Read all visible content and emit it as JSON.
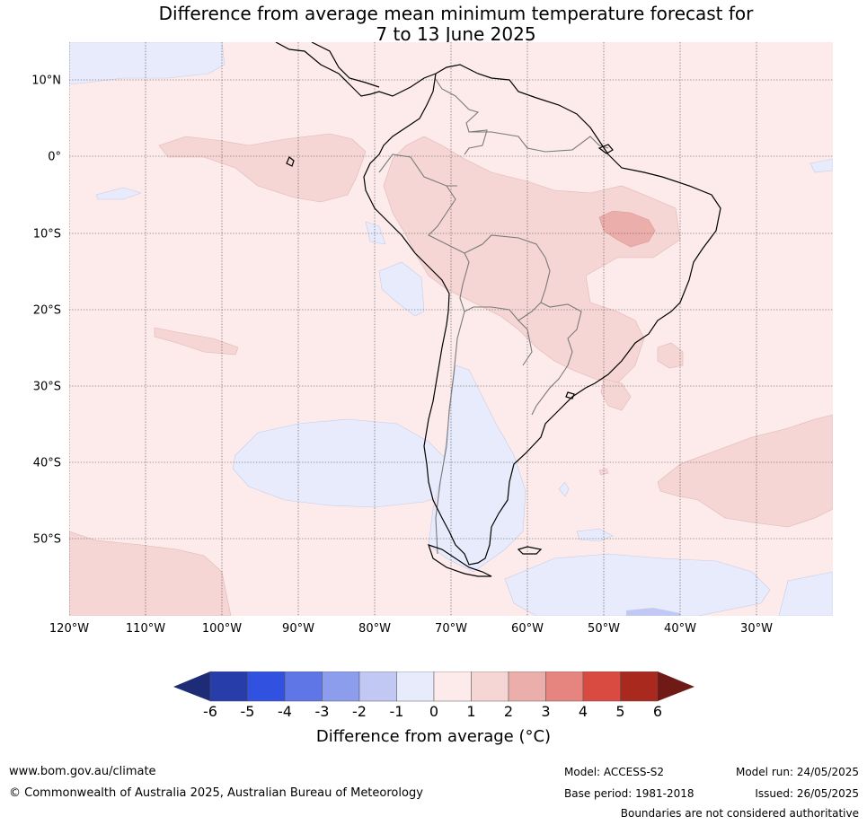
{
  "title": {
    "line1": "Difference from average mean minimum temperature forecast for",
    "line2": "7 to 13 June 2025"
  },
  "latitude_labels": [
    "10°N",
    "0°",
    "10°S",
    "20°S",
    "30°S",
    "40°S",
    "50°S"
  ],
  "longitude_labels": [
    "120°W",
    "110°W",
    "100°W",
    "90°W",
    "80°W",
    "70°W",
    "60°W",
    "50°W",
    "40°W",
    "30°W"
  ],
  "colorbar": {
    "ticks": [
      "-6",
      "-5",
      "-4",
      "-3",
      "-2",
      "-1",
      "0",
      "1",
      "2",
      "3",
      "4",
      "5",
      "6"
    ],
    "colors": [
      "#273da9",
      "#3152e0",
      "#5f77e6",
      "#8c9ded",
      "#c1c8f4",
      "#e8ebfb",
      "#fcebea",
      "#f5d6d4",
      "#ecaeaa",
      "#e6857f",
      "#d94b41",
      "#a9291f"
    ],
    "under_color": "#1e2c78",
    "over_color": "#701a17",
    "label": "Difference from average (°C)"
  },
  "footer": {
    "url": "www.bom.gov.au/climate",
    "copyright": "© Commonwealth of Australia 2025, Australian Bureau of Meteorology",
    "model": "Model: ACCESS-S2",
    "base_period": "Base period: 1981-2018",
    "model_run": "Model run: 24/05/2025",
    "issued": "Issued: 26/05/2025",
    "disclaimer": "Boundaries are not considered authoritative"
  }
}
